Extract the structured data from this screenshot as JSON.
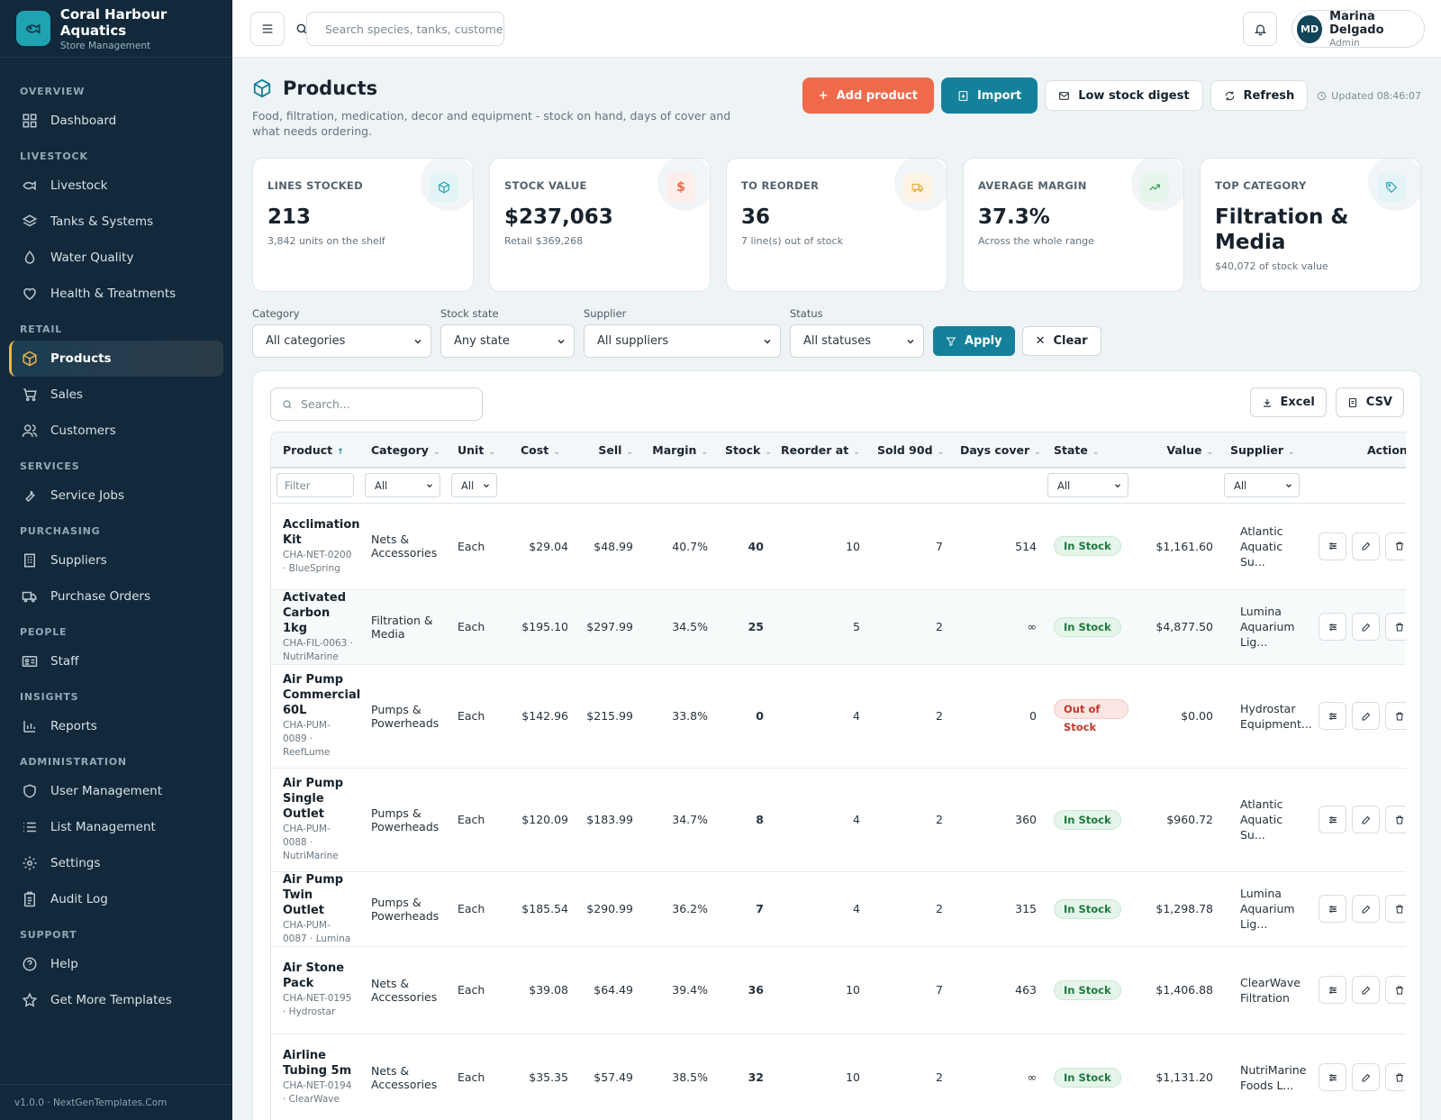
{
  "app": {
    "name": "Coral Harbour Aquatics",
    "subtitle": "Store Management",
    "version": "v1.0.0 · NextGenTemplates.Com"
  },
  "nav": {
    "overview": "OVERVIEW",
    "dashboard": "Dashboard",
    "livestock_section": "LIVESTOCK",
    "livestock": "Livestock",
    "tanks": "Tanks & Systems",
    "water": "Water Quality",
    "health": "Health & Treatments",
    "retail": "RETAIL",
    "products": "Products",
    "sales": "Sales",
    "customers": "Customers",
    "services": "SERVICES",
    "service_jobs": "Service Jobs",
    "purchasing": "PURCHASING",
    "suppliers": "Suppliers",
    "purchase_orders": "Purchase Orders",
    "people": "PEOPLE",
    "staff": "Staff",
    "insights": "INSIGHTS",
    "reports": "Reports",
    "administration": "ADMINISTRATION",
    "user_mgmt": "User Management",
    "list_mgmt": "List Management",
    "settings": "Settings",
    "audit": "Audit Log",
    "support": "SUPPORT",
    "help": "Help",
    "templates": "Get More Templates"
  },
  "topbar": {
    "search_placeholder": "Search species, tanks, custome",
    "user_initials": "MD",
    "user_name": "Marina Delgado",
    "user_role": "Admin"
  },
  "header": {
    "title": "Products",
    "subtitle": "Food, filtration, medication, decor and equipment - stock on hand, days of cover and what needs ordering.",
    "add": "Add product",
    "import": "Import",
    "digest": "Low stock digest",
    "refresh": "Refresh",
    "updated": "Updated 08:46:07"
  },
  "kpis": [
    {
      "label": "LINES STOCKED",
      "value": "213",
      "sub": "3,842 units on the shelf",
      "icon": "box-icon",
      "color": "#1fa3b3",
      "bg": "#e3f4f6"
    },
    {
      "label": "STOCK VALUE",
      "value": "$237,063",
      "sub": "Retail $369,268",
      "icon": "dollar-icon",
      "color": "#ef6a4a",
      "bg": "#fdeee9"
    },
    {
      "label": "TO REORDER",
      "value": "36",
      "sub": "7 line(s) out of stock",
      "icon": "truck-icon",
      "color": "#e8a93a",
      "bg": "#fdf3e2"
    },
    {
      "label": "AVERAGE MARGIN",
      "value": "37.3%",
      "sub": "Across the whole range",
      "icon": "trend-icon",
      "color": "#2e9a56",
      "bg": "#e5f5ea"
    },
    {
      "label": "TOP CATEGORY",
      "value": "Filtration & Media",
      "sub": "$40,072 of stock value",
      "icon": "tag-icon",
      "color": "#1fa3b3",
      "bg": "#e3f4f6"
    }
  ],
  "filters": {
    "category_label": "Category",
    "category_value": "All categories",
    "stock_label": "Stock state",
    "stock_value": "Any state",
    "supplier_label": "Supplier",
    "supplier_value": "All suppliers",
    "status_label": "Status",
    "status_value": "All statuses",
    "apply": "Apply",
    "clear": "Clear"
  },
  "table": {
    "search_placeholder": "Search...",
    "excel": "Excel",
    "csv": "CSV",
    "headers": {
      "product": "Product",
      "category": "Category",
      "unit": "Unit",
      "cost": "Cost",
      "sell": "Sell",
      "margin": "Margin",
      "stock": "Stock",
      "reorder": "Reorder at",
      "sold": "Sold 90d",
      "cover": "Days cover",
      "state": "State",
      "value": "Value",
      "supplier": "Supplier",
      "actions": "Actions"
    },
    "filter_placeholder": "Filter",
    "all": "All",
    "rows": [
      {
        "name": "Acclimation Kit",
        "sku": "CHA-NET-0200 · BlueSpring",
        "category": "Nets & Accessories",
        "unit": "Each",
        "cost": "$29.04",
        "sell": "$48.99",
        "margin": "40.7%",
        "stock": "40",
        "reorder": "10",
        "sold": "7",
        "cover": "514",
        "state": "In Stock",
        "value": "$1,161.60",
        "supplier": "Atlantic Aquatic Su..."
      },
      {
        "name": "Activated Carbon 1kg",
        "sku": "CHA-FIL-0063 · NutriMarine",
        "category": "Filtration & Media",
        "unit": "Each",
        "cost": "$195.10",
        "sell": "$297.99",
        "margin": "34.5%",
        "stock": "25",
        "reorder": "5",
        "sold": "2",
        "cover": "∞",
        "state": "In Stock",
        "value": "$4,877.50",
        "supplier": "Lumina Aquarium Lig..."
      },
      {
        "name": "Air Pump Commercial 60L",
        "sku": "CHA-PUM-0089 · ReefLume",
        "category": "Pumps & Powerheads",
        "unit": "Each",
        "cost": "$142.96",
        "sell": "$215.99",
        "margin": "33.8%",
        "stock": "0",
        "reorder": "4",
        "sold": "2",
        "cover": "0",
        "state": "Out of Stock",
        "value": "$0.00",
        "supplier": "Hydrostar Equipment..."
      },
      {
        "name": "Air Pump Single Outlet",
        "sku": "CHA-PUM-0088 · NutriMarine",
        "category": "Pumps & Powerheads",
        "unit": "Each",
        "cost": "$120.09",
        "sell": "$183.99",
        "margin": "34.7%",
        "stock": "8",
        "reorder": "4",
        "sold": "2",
        "cover": "360",
        "state": "In Stock",
        "value": "$960.72",
        "supplier": "Atlantic Aquatic Su..."
      },
      {
        "name": "Air Pump Twin Outlet",
        "sku": "CHA-PUM-0087 · Lumina",
        "category": "Pumps & Powerheads",
        "unit": "Each",
        "cost": "$185.54",
        "sell": "$290.99",
        "margin": "36.2%",
        "stock": "7",
        "reorder": "4",
        "sold": "2",
        "cover": "315",
        "state": "In Stock",
        "value": "$1,298.78",
        "supplier": "Lumina Aquarium Lig..."
      },
      {
        "name": "Air Stone Pack",
        "sku": "CHA-NET-0195 · Hydrostar",
        "category": "Nets & Accessories",
        "unit": "Each",
        "cost": "$39.08",
        "sell": "$64.49",
        "margin": "39.4%",
        "stock": "36",
        "reorder": "10",
        "sold": "7",
        "cover": "463",
        "state": "In Stock",
        "value": "$1,406.88",
        "supplier": "ClearWave Filtration"
      },
      {
        "name": "Airline Tubing 5m",
        "sku": "CHA-NET-0194 · ClearWave",
        "category": "Nets & Accessories",
        "unit": "Each",
        "cost": "$35.35",
        "sell": "$57.49",
        "margin": "38.5%",
        "stock": "32",
        "reorder": "10",
        "sold": "2",
        "cover": "∞",
        "state": "In Stock",
        "value": "$1,131.20",
        "supplier": "NutriMarine Foods L..."
      }
    ]
  }
}
